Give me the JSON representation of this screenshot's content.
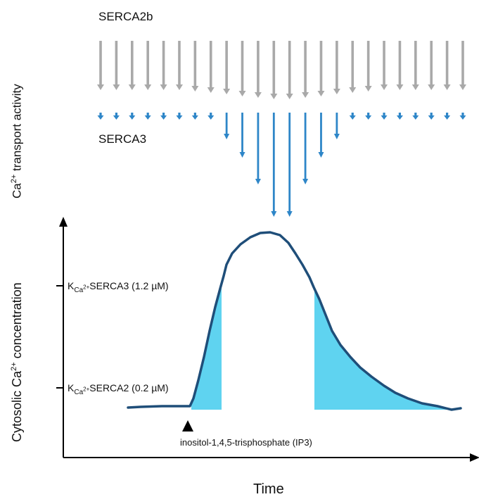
{
  "labels": {
    "serca2b": "SERCA2b",
    "serca3": "SERCA3",
    "transport_axis": {
      "prefix": "Ca",
      "sup": "2+",
      "suffix": " transport  activity"
    },
    "conc_axis": {
      "prefix": "Cytosolic Ca",
      "sup": "2+",
      "suffix": " concentration"
    },
    "time": "Time",
    "ip3": "inositol-1,4,5-trisphosphate (IP3)",
    "k3": {
      "k": "K",
      "sub": "Ca",
      "subsup": "2+",
      "name": "SERCA3",
      "value": " (1.2 µM)"
    },
    "k2": {
      "k": "K",
      "sub": "Ca",
      "subsup": "2+",
      "name": "SERCA2",
      "value": " (0.2 µM)"
    }
  },
  "colors": {
    "serca2b_arrows": "#a9a9a9",
    "serca3_arrows": "#2e86c8",
    "curve": "#1f4e79",
    "fill": "#5fd3f0",
    "axis": "#000000"
  },
  "chart_data": {
    "type": "line",
    "series": [
      {
        "name": "Cytosolic Ca2+ concentration"
      }
    ],
    "thresholds": [
      "SERCA3 (1.2 µM)",
      "SERCA2 (0.2 µM)"
    ],
    "serca2b_arrow_count": 24,
    "serca3_arrow_count": 24
  }
}
